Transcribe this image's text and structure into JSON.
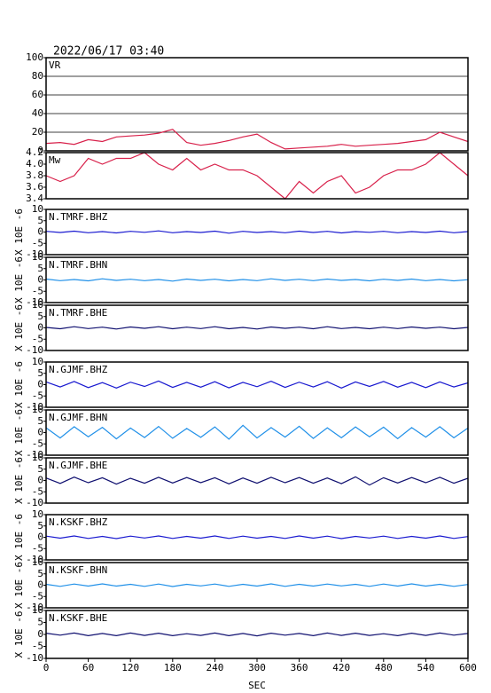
{
  "chart_data": {
    "type": "line",
    "title": "2022/06/17 03:40",
    "xlabel": "SEC",
    "xlim": [
      0,
      600
    ],
    "xticks": [
      0,
      60,
      120,
      180,
      240,
      300,
      360,
      420,
      480,
      540,
      600
    ],
    "x": [
      0,
      20,
      40,
      60,
      80,
      100,
      120,
      140,
      160,
      180,
      200,
      220,
      240,
      260,
      280,
      300,
      320,
      340,
      360,
      380,
      400,
      420,
      440,
      460,
      480,
      500,
      520,
      540,
      560,
      580,
      600
    ],
    "panels": [
      {
        "label": "VR",
        "color": "#d8204a",
        "grid": true,
        "ylim": [
          0,
          100
        ],
        "yticks": [
          0,
          20,
          40,
          60,
          80,
          100
        ],
        "values": [
          8,
          9,
          7,
          12,
          10,
          15,
          16,
          17,
          19,
          23,
          9,
          6,
          8,
          11,
          15,
          18,
          9,
          2,
          3,
          4,
          5,
          7,
          5,
          6,
          7,
          8,
          10,
          12,
          20,
          15,
          10
        ]
      },
      {
        "label": "Mw",
        "color": "#d8204a",
        "grid": false,
        "ylim": [
          3.4,
          4.2
        ],
        "yticks": [
          3.4,
          3.6,
          3.8,
          {
            "value": 4,
            "label": "4.0"
          },
          4.2
        ],
        "values": [
          3.8,
          3.7,
          3.8,
          4.1,
          4.0,
          4.1,
          4.1,
          4.2,
          4.0,
          3.9,
          4.1,
          3.9,
          4.0,
          3.9,
          3.9,
          3.8,
          3.6,
          3.4,
          3.7,
          3.5,
          3.7,
          3.8,
          3.5,
          3.6,
          3.8,
          3.9,
          3.9,
          4.0,
          4.2,
          4.0,
          3.8
        ]
      },
      {
        "label": "N.TMRF.BHZ",
        "ylabel": "X 10E -6",
        "color": "#1a1ad0",
        "grid": false,
        "ylim": [
          -10,
          10
        ],
        "yticks": [
          -10,
          -5,
          0,
          5,
          10
        ],
        "values": [
          0.3,
          -0.2,
          0.4,
          -0.3,
          0.2,
          -0.4,
          0.3,
          -0.1,
          0.5,
          -0.3,
          0.2,
          -0.2,
          0.4,
          -0.5,
          0.3,
          -0.2,
          0.2,
          -0.3,
          0.4,
          -0.2,
          0.3,
          -0.4,
          0.2,
          -0.1,
          0.3,
          -0.3,
          0.2,
          -0.2,
          0.4,
          -0.3,
          0.2
        ]
      },
      {
        "label": "N.TMRF.BHN",
        "ylabel": "X 10E -6",
        "color": "#2090e8",
        "grid": false,
        "ylim": [
          -10,
          10
        ],
        "yticks": [
          -10,
          -5,
          0,
          5,
          10
        ],
        "values": [
          0.4,
          -0.3,
          0.2,
          -0.4,
          0.5,
          -0.2,
          0.3,
          -0.3,
          0.2,
          -0.5,
          0.4,
          -0.2,
          0.3,
          -0.4,
          0.2,
          -0.3,
          0.5,
          -0.2,
          0.3,
          -0.3,
          0.4,
          -0.2,
          0.2,
          -0.4,
          0.3,
          -0.2,
          0.4,
          -0.3,
          0.2,
          -0.4,
          0.1
        ]
      },
      {
        "label": "N.TMRF.BHE",
        "ylabel": "X 10E -6",
        "color": "#101070",
        "grid": false,
        "ylim": [
          -10,
          10
        ],
        "yticks": [
          -10,
          -5,
          0,
          5,
          10
        ],
        "values": [
          0.2,
          -0.4,
          0.5,
          -0.3,
          0.3,
          -0.5,
          0.4,
          -0.2,
          0.5,
          -0.4,
          0.3,
          -0.3,
          0.5,
          -0.4,
          0.2,
          -0.5,
          0.4,
          -0.2,
          0.3,
          -0.4,
          0.5,
          -0.3,
          0.2,
          -0.4,
          0.3,
          -0.3,
          0.4,
          -0.2,
          0.3,
          -0.4,
          0.2
        ]
      },
      {
        "label": "N.GJMF.BHZ",
        "ylabel": "X 10E -6",
        "color": "#1a1ad0",
        "grid": false,
        "ylim": [
          -10,
          10
        ],
        "yticks": [
          -10,
          -5,
          0,
          5,
          10
        ],
        "values": [
          1.2,
          -1.0,
          1.4,
          -1.3,
          0.9,
          -1.5,
          1.1,
          -0.8,
          1.6,
          -1.2,
          1.0,
          -1.1,
          1.3,
          -1.4,
          1.0,
          -0.9,
          1.5,
          -1.2,
          1.1,
          -1.0,
          1.3,
          -1.5,
          1.2,
          -0.8,
          1.4,
          -1.1,
          1.0,
          -1.3,
          1.2,
          -1.0,
          0.8
        ]
      },
      {
        "label": "N.GJMF.BHN",
        "ylabel": "X 10E -6",
        "color": "#2090e8",
        "grid": false,
        "ylim": [
          -10,
          10
        ],
        "yticks": [
          -10,
          -5,
          0,
          5,
          10
        ],
        "values": [
          2.1,
          -2.4,
          2.6,
          -1.9,
          2.3,
          -2.8,
          2.0,
          -2.2,
          2.7,
          -2.5,
          1.8,
          -2.1,
          2.5,
          -2.9,
          3.2,
          -2.4,
          2.2,
          -2.0,
          2.8,
          -2.6,
          2.1,
          -2.3,
          2.5,
          -1.9,
          2.4,
          -2.7,
          2.2,
          -2.0,
          2.6,
          -2.3,
          2.0
        ]
      },
      {
        "label": "N.GJMF.BHE",
        "ylabel": "X 10E -6",
        "color": "#101070",
        "grid": false,
        "ylim": [
          -10,
          10
        ],
        "yticks": [
          -10,
          -5,
          0,
          5,
          10
        ],
        "values": [
          1.1,
          -1.3,
          1.5,
          -1.0,
          1.2,
          -1.6,
          1.0,
          -1.2,
          1.4,
          -1.1,
          1.3,
          -1.0,
          1.2,
          -1.5,
          1.1,
          -1.2,
          1.4,
          -1.0,
          1.3,
          -1.2,
          1.1,
          -1.4,
          1.6,
          -2.0,
          1.2,
          -1.1,
          1.3,
          -1.0,
          1.4,
          -1.2,
          1.0
        ]
      },
      {
        "label": "N.KSKF.BHZ",
        "ylabel": "X 10E -6",
        "color": "#1a1ad0",
        "grid": false,
        "ylim": [
          -10,
          10
        ],
        "yticks": [
          -10,
          -5,
          0,
          5,
          10
        ],
        "values": [
          0.5,
          -0.4,
          0.6,
          -0.5,
          0.4,
          -0.6,
          0.5,
          -0.3,
          0.6,
          -0.5,
          0.4,
          -0.4,
          0.6,
          -0.5,
          0.5,
          -0.4,
          0.4,
          -0.5,
          0.6,
          -0.4,
          0.5,
          -0.6,
          0.4,
          -0.3,
          0.5,
          -0.5,
          0.4,
          -0.4,
          0.6,
          -0.5,
          0.3
        ]
      },
      {
        "label": "N.KSKF.BHN",
        "ylabel": "X 10E -6",
        "color": "#2090e8",
        "grid": false,
        "ylim": [
          -10,
          10
        ],
        "yticks": [
          -10,
          -5,
          0,
          5,
          10
        ],
        "values": [
          0.4,
          -0.5,
          0.5,
          -0.4,
          0.6,
          -0.4,
          0.4,
          -0.5,
          0.5,
          -0.6,
          0.4,
          -0.3,
          0.5,
          -0.5,
          0.4,
          -0.4,
          0.6,
          -0.5,
          0.4,
          -0.4,
          0.5,
          -0.3,
          0.4,
          -0.5,
          0.5,
          -0.4,
          0.6,
          -0.4,
          0.4,
          -0.5,
          0.3
        ]
      },
      {
        "label": "N.KSKF.BHE",
        "ylabel": "X 10E -6",
        "color": "#101070",
        "grid": false,
        "ylim": [
          -10,
          10
        ],
        "yticks": [
          -10,
          -5,
          0,
          5,
          10
        ],
        "values": [
          0.5,
          -0.3,
          0.6,
          -0.5,
          0.4,
          -0.5,
          0.6,
          -0.4,
          0.5,
          -0.5,
          0.3,
          -0.4,
          0.6,
          -0.5,
          0.4,
          -0.6,
          0.5,
          -0.3,
          0.4,
          -0.5,
          0.6,
          -0.4,
          0.5,
          -0.4,
          0.3,
          -0.5,
          0.5,
          -0.4,
          0.6,
          -0.3,
          0.4
        ]
      }
    ]
  }
}
